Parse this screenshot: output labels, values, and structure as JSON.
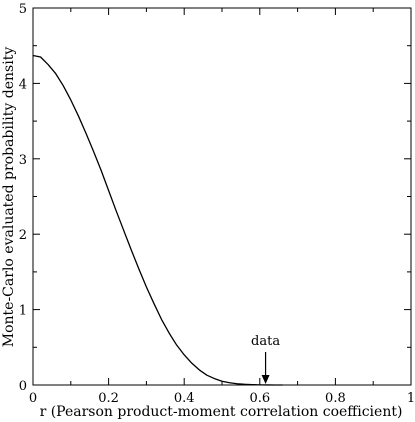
{
  "chart_data": {
    "type": "line",
    "title": "",
    "xlabel": "r (Pearson product-moment correlation coefficient)",
    "ylabel": "Monte-Carlo evaluated probability density",
    "xlim": [
      0,
      1
    ],
    "ylim": [
      0,
      5
    ],
    "x_ticks": [
      "0",
      "0.2",
      "0.4",
      "0.6",
      "0.8",
      "1"
    ],
    "y_ticks": [
      "0",
      "1",
      "2",
      "3",
      "4",
      "5"
    ],
    "grid": false,
    "series": [
      {
        "x": [
          0.0,
          0.02,
          0.04,
          0.06,
          0.08,
          0.1,
          0.12,
          0.14,
          0.16,
          0.18,
          0.2,
          0.22,
          0.24,
          0.26,
          0.28,
          0.3,
          0.32,
          0.34,
          0.36,
          0.38,
          0.4,
          0.42,
          0.44,
          0.46,
          0.48,
          0.5,
          0.52,
          0.54,
          0.56,
          0.58,
          0.6,
          0.62,
          0.64,
          0.66
        ],
        "y": [
          4.37,
          4.35,
          4.25,
          4.13,
          3.97,
          3.78,
          3.57,
          3.34,
          3.1,
          2.85,
          2.58,
          2.31,
          2.05,
          1.79,
          1.54,
          1.3,
          1.08,
          0.87,
          0.69,
          0.53,
          0.4,
          0.29,
          0.2,
          0.13,
          0.085,
          0.05,
          0.03,
          0.017,
          0.009,
          0.005,
          0.002,
          0.001,
          0.0,
          0.0
        ]
      }
    ],
    "annotations": [
      {
        "text": "data",
        "x": 0.61,
        "arrow": true
      }
    ],
    "line_color": "#000000"
  }
}
